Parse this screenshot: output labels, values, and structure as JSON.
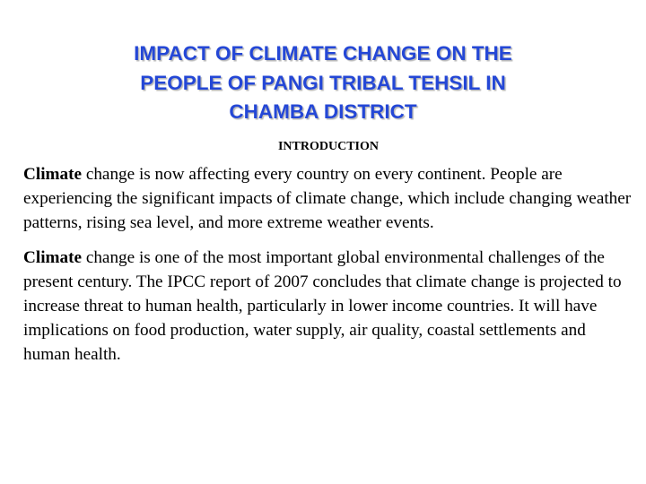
{
  "header": {
    "title_lines": [
      "IMPACT OF CLIMATE CHANGE ON THE",
      "PEOPLE OF PANGI TRIBAL TEHSIL IN",
      "CHAMBA DISTRICT"
    ],
    "subtitle": "INTRODUCTION"
  },
  "paragraphs": [
    {
      "lead": "Climate",
      "text": "change is now affecting every country on every continent. People are experiencing the significant impacts of climate change, which include changing weather patterns, rising sea level, and more extreme weather events."
    },
    {
      "lead": "Climate",
      "text": "change is one of the most important global environmental challenges of the present century. The IPCC report of 2007 concludes that climate change is projected to increase threat to human health, particularly in lower income countries. It will have implications on food production, water supply, air quality, coastal settlements and human health."
    }
  ]
}
